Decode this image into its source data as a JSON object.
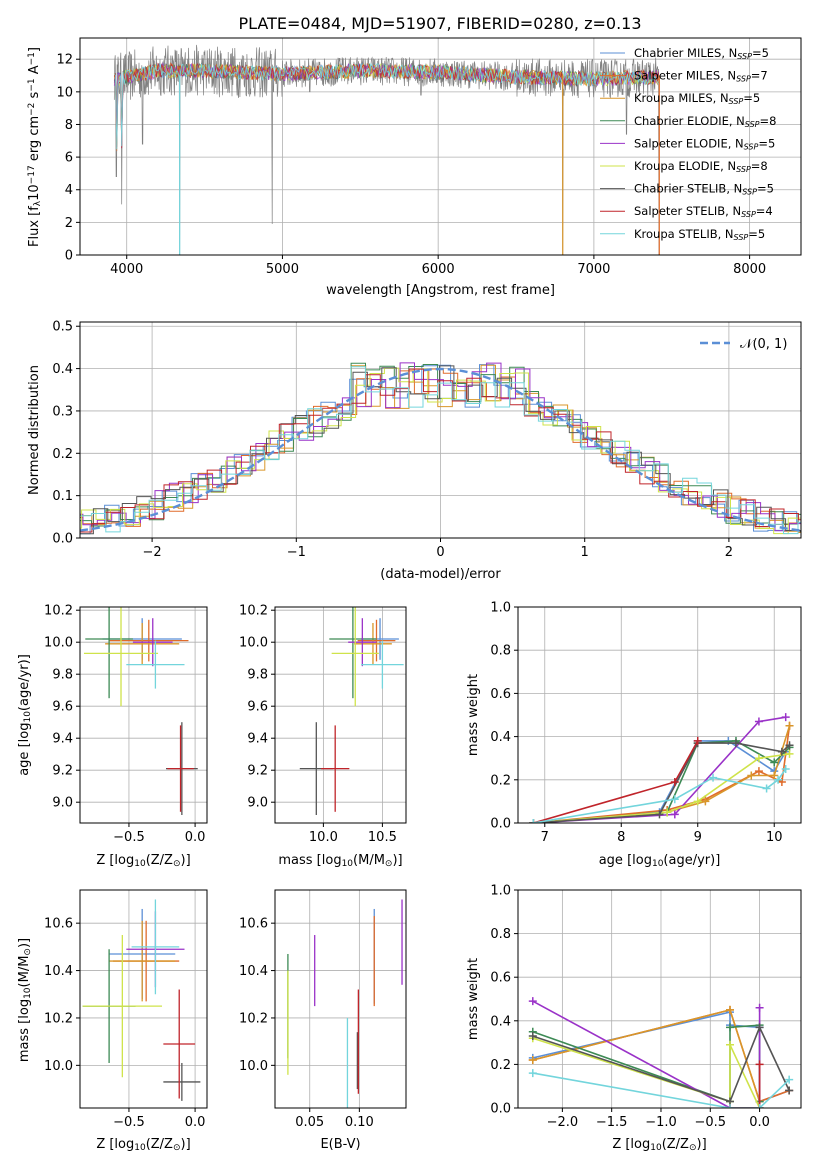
{
  "figure_title": "PLATE=0484, MJD=51907, FIBERID=0280, z=0.13",
  "models": [
    {
      "name": "Chabrier MILES",
      "nssp": "5",
      "color": "#5b8fd6"
    },
    {
      "name": "Salpeter MILES",
      "nssp": "7",
      "color": "#e06c2b"
    },
    {
      "name": "Kroupa MILES",
      "nssp": "5",
      "color": "#d9962a"
    },
    {
      "name": "Chabrier ELODIE",
      "nssp": "8",
      "color": "#3d8a55"
    },
    {
      "name": "Salpeter ELODIE",
      "nssp": "5",
      "color": "#9a32c8"
    },
    {
      "name": "Kroupa ELODIE",
      "nssp": "8",
      "color": "#cfe34a"
    },
    {
      "name": "Chabrier STELIB",
      "nssp": "5",
      "color": "#555555"
    },
    {
      "name": "Salpeter STELIB",
      "nssp": "4",
      "color": "#c0242a"
    },
    {
      "name": "Kroupa STELIB",
      "nssp": "5",
      "color": "#73d5dc"
    }
  ],
  "chart_data": [
    {
      "id": "spectrum",
      "type": "line",
      "xlabel": "wavelength [Angstrom, rest frame]",
      "ylabel_prefix": "Flux [f",
      "ylabel_sub": "λ",
      "ylabel_mid": "10",
      "ylabel_sup1": "−17",
      "ylabel_rest": " erg cm",
      "ylabel_sup2": "−2",
      "ylabel_rest2": " s",
      "ylabel_sup3": "−1",
      "ylabel_rest3": " A",
      "ylabel_sup4": "−1",
      "ylabel_end": "]",
      "xlim": [
        3700,
        8330
      ],
      "ylim": [
        0,
        13.3
      ],
      "xticks": [
        4000,
        5000,
        6000,
        7000,
        8000
      ],
      "yticks": [
        0,
        2,
        4,
        6,
        8,
        10,
        12
      ],
      "continuum": [
        [
          3920,
          10.8
        ],
        [
          4000,
          10.9
        ],
        [
          4200,
          11.3
        ],
        [
          4500,
          11.3
        ],
        [
          5000,
          11.1
        ],
        [
          5500,
          11.3
        ],
        [
          6000,
          11.2
        ],
        [
          6500,
          10.9
        ],
        [
          7000,
          10.8
        ],
        [
          7400,
          10.9
        ]
      ],
      "absorption_lines": [
        [
          3934,
          4.8
        ],
        [
          3968,
          3.1
        ],
        [
          4101,
          6.8
        ],
        [
          4340,
          0.0
        ],
        [
          4861,
          10.2
        ],
        [
          4934,
          1.9
        ],
        [
          5175,
          10.0
        ],
        [
          5890,
          9.8
        ],
        [
          6563,
          10.2
        ],
        [
          6800,
          0.0
        ],
        [
          7210,
          7.4
        ],
        [
          7420,
          0.0
        ]
      ],
      "legend": "right"
    },
    {
      "id": "residuals",
      "type": "histogram",
      "xlabel": "(data-model)/error",
      "ylabel": "Normed distribution",
      "xlim": [
        -2.5,
        2.5
      ],
      "ylim": [
        0,
        0.51
      ],
      "xticks": [
        -2,
        -1,
        0,
        1,
        2
      ],
      "xtick_labels": [
        "−2",
        "−1",
        "0",
        "1",
        "2"
      ],
      "yticks": [
        0.0,
        0.1,
        0.2,
        0.3,
        0.4,
        0.5
      ],
      "bin_width": 0.1,
      "reference_curve": "N(0,1)",
      "legend_label": "𝒩(0, 1)",
      "legend": "top-right"
    },
    {
      "id": "age_vs_Z",
      "type": "scatter",
      "xlabel_prefix": "Z [log",
      "xlabel_sub": "10",
      "xlabel_rest": "(Z/Z",
      "xlabel_sub2": "⊙",
      "xlabel_end": ")]",
      "ylabel_prefix": "age  [log",
      "ylabel_sub": "10",
      "ylabel_rest": "(age/yr)]",
      "xlim": [
        -0.87,
        0.09
      ],
      "ylim": [
        8.87,
        10.22
      ],
      "xticks": [
        -0.5,
        0.0
      ],
      "xtick_labels": [
        "−0.5",
        "0.0"
      ],
      "yticks": [
        9.0,
        9.2,
        9.4,
        9.6,
        9.8,
        10.0,
        10.2
      ],
      "points": [
        {
          "model": 0,
          "x": -0.4,
          "y": 10.02,
          "xerr": 0.3,
          "yerr": 0.13
        },
        {
          "model": 1,
          "x": -0.35,
          "y": 10.01,
          "xerr": 0.3,
          "yerr": 0.13
        },
        {
          "model": 2,
          "x": -0.4,
          "y": 9.99,
          "xerr": 0.28,
          "yerr": 0.13
        },
        {
          "model": 3,
          "x": -0.65,
          "y": 10.02,
          "xerr": 0.18,
          "yerr": 0.37
        },
        {
          "model": 4,
          "x": -0.32,
          "y": 10.0,
          "xerr": 0.15,
          "yerr": 0.15
        },
        {
          "model": 5,
          "x": -0.56,
          "y": 9.93,
          "xerr": 0.28,
          "yerr": 0.33
        },
        {
          "model": 6,
          "x": -0.1,
          "y": 9.21,
          "xerr": 0.12,
          "yerr": 0.29
        },
        {
          "model": 7,
          "x": -0.11,
          "y": 9.21,
          "xerr": 0.1,
          "yerr": 0.27
        },
        {
          "model": 8,
          "x": -0.3,
          "y": 9.86,
          "xerr": 0.22,
          "yerr": 0.15
        }
      ]
    },
    {
      "id": "age_vs_mass",
      "type": "scatter",
      "xlabel_prefix": "mass [log",
      "xlabel_sub": "10",
      "xlabel_rest": "(M/M",
      "xlabel_sub2": "⊙",
      "xlabel_end": ")]",
      "xlim": [
        9.59,
        10.7
      ],
      "ylim": [
        8.87,
        10.22
      ],
      "xticks": [
        10.0,
        10.5
      ],
      "xtick_labels": [
        "10.0",
        "10.5"
      ],
      "yticks": [
        9.0,
        9.2,
        9.4,
        9.6,
        9.8,
        10.0,
        10.2
      ],
      "points": [
        {
          "model": 0,
          "x": 10.48,
          "y": 10.02,
          "xerr": 0.16,
          "yerr": 0.13
        },
        {
          "model": 1,
          "x": 10.45,
          "y": 10.01,
          "xerr": 0.16,
          "yerr": 0.13
        },
        {
          "model": 2,
          "x": 10.42,
          "y": 9.99,
          "xerr": 0.16,
          "yerr": 0.13
        },
        {
          "model": 3,
          "x": 10.25,
          "y": 10.02,
          "xerr": 0.2,
          "yerr": 0.37
        },
        {
          "model": 4,
          "x": 10.33,
          "y": 10.0,
          "xerr": 0.12,
          "yerr": 0.15
        },
        {
          "model": 5,
          "x": 10.27,
          "y": 9.93,
          "xerr": 0.2,
          "yerr": 0.33
        },
        {
          "model": 6,
          "x": 9.94,
          "y": 9.21,
          "xerr": 0.14,
          "yerr": 0.29
        },
        {
          "model": 7,
          "x": 10.1,
          "y": 9.21,
          "xerr": 0.12,
          "yerr": 0.27
        },
        {
          "model": 8,
          "x": 10.5,
          "y": 9.86,
          "xerr": 0.18,
          "yerr": 0.15
        }
      ]
    },
    {
      "id": "massweight_vs_age",
      "type": "line",
      "xlabel_prefix": "age  [log",
      "xlabel_sub": "10",
      "xlabel_rest": "(age/yr)]",
      "ylabel": "mass weight",
      "xlim": [
        6.65,
        10.35
      ],
      "ylim": [
        0,
        1.0
      ],
      "xticks": [
        7,
        8,
        9,
        10
      ],
      "yticks": [
        0.0,
        0.2,
        0.4,
        0.6,
        0.8,
        1.0
      ],
      "series": [
        {
          "model": 0,
          "x": [
            6.85,
            8.5,
            9.0,
            9.4,
            10.0,
            10.15
          ],
          "y": [
            0.0,
            0.05,
            0.38,
            0.38,
            0.24,
            0.33
          ]
        },
        {
          "model": 1,
          "x": [
            6.85,
            8.6,
            9.1,
            9.8,
            10.1,
            10.2
          ],
          "y": [
            0.0,
            0.06,
            0.11,
            0.24,
            0.19,
            0.45
          ]
        },
        {
          "model": 2,
          "x": [
            6.85,
            8.6,
            9.1,
            9.7,
            10.0,
            10.2
          ],
          "y": [
            0.0,
            0.05,
            0.1,
            0.22,
            0.22,
            0.45
          ]
        },
        {
          "model": 3,
          "x": [
            6.85,
            8.6,
            9.0,
            9.5,
            10.0,
            10.2
          ],
          "y": [
            0.0,
            0.05,
            0.37,
            0.38,
            0.28,
            0.35
          ]
        },
        {
          "model": 4,
          "x": [
            6.85,
            8.7,
            9.8,
            10.15
          ],
          "y": [
            0.0,
            0.04,
            0.47,
            0.49
          ]
        },
        {
          "model": 5,
          "x": [
            6.85,
            8.6,
            9.0,
            9.8,
            10.2
          ],
          "y": [
            0.0,
            0.05,
            0.1,
            0.3,
            0.32
          ]
        },
        {
          "model": 6,
          "x": [
            6.85,
            8.5,
            9.0,
            9.5,
            10.1,
            10.2
          ],
          "y": [
            0.0,
            0.04,
            0.37,
            0.37,
            0.33,
            0.36
          ]
        },
        {
          "model": 7,
          "x": [
            6.85,
            8.7,
            9.0
          ],
          "y": [
            0.0,
            0.19,
            0.38
          ]
        },
        {
          "model": 8,
          "x": [
            6.85,
            8.7,
            9.2,
            9.9,
            10.05,
            10.15
          ],
          "y": [
            0.0,
            0.11,
            0.21,
            0.16,
            0.2,
            0.25
          ]
        }
      ]
    },
    {
      "id": "mass_vs_Z",
      "type": "scatter",
      "xlabel_prefix": "Z [log",
      "xlabel_sub": "10",
      "xlabel_rest": "(Z/Z",
      "xlabel_sub2": "⊙",
      "xlabel_end": ")]",
      "ylabel_prefix": "mass [log",
      "ylabel_sub": "10",
      "ylabel_rest": "(M/M",
      "ylabel_sub2": "⊙",
      "ylabel_end": ")]",
      "xlim": [
        -0.87,
        0.09
      ],
      "ylim": [
        9.82,
        10.74
      ],
      "xticks": [
        -0.5,
        0.0
      ],
      "xtick_labels": [
        "−0.5",
        "0.0"
      ],
      "yticks": [
        10.0,
        10.2,
        10.4,
        10.6
      ],
      "points": [
        {
          "model": 0,
          "x": -0.4,
          "y": 10.47,
          "xerr": 0.25,
          "yerr": 0.19
        },
        {
          "model": 1,
          "x": -0.37,
          "y": 10.44,
          "xerr": 0.25,
          "yerr": 0.17
        },
        {
          "model": 2,
          "x": -0.4,
          "y": 10.44,
          "xerr": 0.25,
          "yerr": 0.17
        },
        {
          "model": 3,
          "x": -0.65,
          "y": 10.25,
          "xerr": 0.2,
          "yerr": 0.24
        },
        {
          "model": 4,
          "x": -0.3,
          "y": 10.49,
          "xerr": 0.22,
          "yerr": 0.16
        },
        {
          "model": 5,
          "x": -0.55,
          "y": 10.25,
          "xerr": 0.3,
          "yerr": 0.3
        },
        {
          "model": 6,
          "x": -0.1,
          "y": 9.93,
          "xerr": 0.14,
          "yerr": 0.08
        },
        {
          "model": 7,
          "x": -0.12,
          "y": 10.09,
          "xerr": 0.12,
          "yerr": 0.23
        },
        {
          "model": 8,
          "x": -0.3,
          "y": 10.5,
          "xerr": 0.18,
          "yerr": 0.2
        }
      ]
    },
    {
      "id": "mass_vs_EBV",
      "type": "scatter",
      "xlabel": "E(B-V)",
      "xlim": [
        0.015,
        0.147
      ],
      "ylim": [
        9.82,
        10.74
      ],
      "xticks": [
        0.05,
        0.1
      ],
      "xtick_labels": [
        "0.05",
        "0.10"
      ],
      "yticks": [
        10.0,
        10.2,
        10.4,
        10.6
      ],
      "points": [
        {
          "model": 0,
          "x": 0.115,
          "y": 10.46,
          "yerr": 0.2
        },
        {
          "model": 1,
          "x": 0.115,
          "y": 10.44,
          "yerr": 0.19
        },
        {
          "model": 3,
          "x": 0.028,
          "y": 10.25,
          "yerr": 0.22
        },
        {
          "model": 4,
          "x": 0.055,
          "y": 10.4,
          "yerr": 0.15
        },
        {
          "model": 5,
          "x": 0.028,
          "y": 10.18,
          "yerr": 0.22
        },
        {
          "model": 6,
          "x": 0.098,
          "y": 10.02,
          "yerr": 0.12
        },
        {
          "model": 7,
          "x": 0.099,
          "y": 10.1,
          "yerr": 0.22
        },
        {
          "model": 8,
          "x": 0.088,
          "y": 10.0,
          "yerr": 0.2
        },
        {
          "model": 4,
          "x": 0.143,
          "y": 10.52,
          "yerr": 0.18
        }
      ]
    },
    {
      "id": "massweight_vs_Z",
      "type": "line",
      "xlabel_prefix": "Z [log",
      "xlabel_sub": "10",
      "xlabel_rest": "(Z/Z",
      "xlabel_sub2": "⊙",
      "xlabel_end": ")]",
      "ylabel": "mass weight",
      "xlim": [
        -2.45,
        0.42
      ],
      "ylim": [
        0,
        1.0
      ],
      "xticks": [
        -2.0,
        -1.5,
        -1.0,
        -0.5,
        0.0
      ],
      "xtick_labels": [
        "−2.0",
        "−1.5",
        "−1.0",
        "−0.5",
        "0.0"
      ],
      "yticks": [
        0.0,
        0.2,
        0.4,
        0.6,
        0.8,
        1.0
      ],
      "series": [
        {
          "model": 0,
          "x": [
            -2.3,
            -0.3,
            -0.3,
            0.0,
            0.0,
            0.3
          ],
          "y": [
            0.23,
            0.44,
            0.38,
            0.37,
            0.03,
            0.08
          ]
        },
        {
          "model": 1,
          "x": [
            -2.3,
            -0.3,
            0.0,
            0.3
          ],
          "y": [
            0.22,
            0.45,
            0.03,
            0.08
          ]
        },
        {
          "model": 2,
          "x": [
            -2.3,
            -0.3,
            0.0
          ],
          "y": [
            0.22,
            0.45,
            0.03
          ]
        },
        {
          "model": 3,
          "x": [
            -2.3,
            -0.3,
            -0.3,
            0.0,
            0.0
          ],
          "y": [
            0.35,
            0.03,
            0.37,
            0.38,
            0.03
          ]
        },
        {
          "model": 4,
          "x": [
            -2.3,
            -0.3,
            0.0,
            0.0
          ],
          "y": [
            0.49,
            0.0,
            0.0,
            0.46
          ]
        },
        {
          "model": 5,
          "x": [
            -2.3,
            -0.3,
            -0.3,
            0.0
          ],
          "y": [
            0.32,
            0.03,
            0.29,
            0.0
          ]
        },
        {
          "model": 6,
          "x": [
            -2.3,
            -0.3,
            0.0,
            0.3
          ],
          "y": [
            0.33,
            0.03,
            0.37,
            0.08
          ]
        },
        {
          "model": 7,
          "x": [
            -0.3,
            0.0,
            0.0
          ],
          "y": [
            0.0,
            0.0,
            0.2
          ]
        },
        {
          "model": 8,
          "x": [
            -2.3,
            -0.3,
            0.0,
            0.3
          ],
          "y": [
            0.16,
            0.0,
            0.0,
            0.13
          ]
        }
      ]
    }
  ]
}
